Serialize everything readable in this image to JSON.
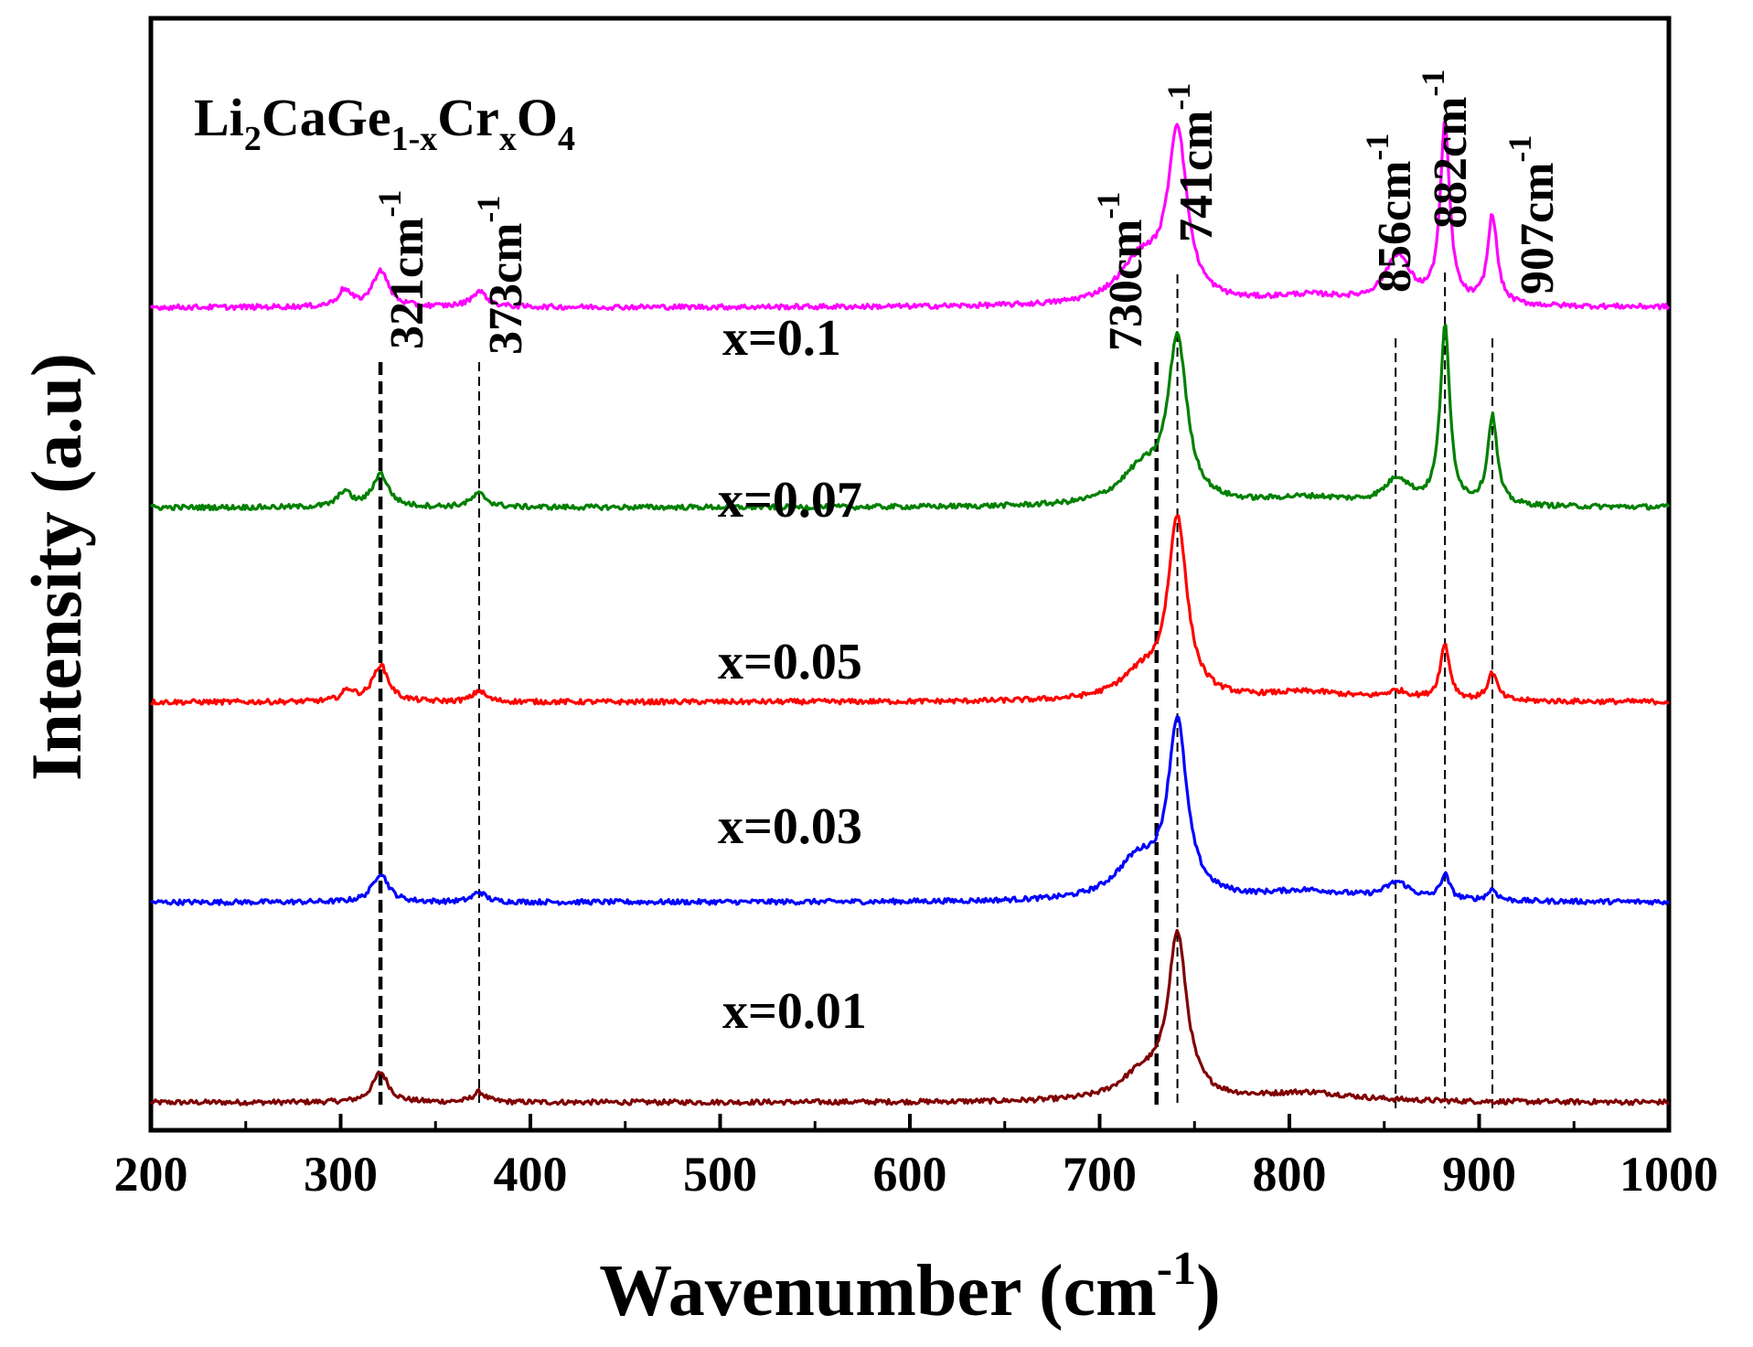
{
  "chart_data": {
    "type": "line",
    "title": "",
    "formula": {
      "base": "Li",
      "s1": "2",
      "mid": "CaGe",
      "s2": "1-x",
      "mid2": "Cr",
      "s3": "x",
      "end": "O",
      "s4": "4"
    },
    "xlabel": "Wavenumber (cm",
    "xlabel_sup": "-1",
    "xlabel_close": ")",
    "ylabel": "Intensity (a.u)",
    "xlim": [
      200,
      1000
    ],
    "ylim": [
      0,
      100
    ],
    "x_ticks": [
      "200",
      "300",
      "400",
      "500",
      "600",
      "700",
      "800",
      "900",
      "1000"
    ],
    "grid": false,
    "legend": "inline labels above each trace",
    "series": [
      {
        "name": "x=0.01",
        "color": "#800000",
        "offset": 2.5,
        "peaks": [
          [
            722,
            2.2,
            14
          ],
          [
            741,
            14.5,
            6
          ],
          [
            321,
            2.7,
            5
          ],
          [
            373,
            0.9,
            4
          ],
          [
            810,
            0.8,
            30
          ]
        ]
      },
      {
        "name": "x=0.03",
        "color": "#0000ff",
        "offset": 20.5,
        "peaks": [
          [
            720,
            3.5,
            14
          ],
          [
            741,
            15.5,
            6
          ],
          [
            321,
            2.6,
            5
          ],
          [
            373,
            0.9,
            4
          ],
          [
            810,
            0.9,
            30
          ],
          [
            857,
            1.5,
            8
          ],
          [
            882,
            2.2,
            3
          ],
          [
            907,
            1.0,
            3
          ]
        ]
      },
      {
        "name": "x=0.05",
        "color": "#ff0000",
        "offset": 38.5,
        "peaks": [
          [
            722,
            2.2,
            14
          ],
          [
            741,
            16.0,
            6
          ],
          [
            321,
            3.3,
            5
          ],
          [
            304,
            1.0,
            4
          ],
          [
            373,
            1.0,
            4
          ],
          [
            810,
            0.8,
            30
          ],
          [
            857,
            0.7,
            8
          ],
          [
            882,
            5.0,
            3
          ],
          [
            907,
            2.5,
            3
          ]
        ]
      },
      {
        "name": "x=0.07",
        "color": "#008000",
        "offset": 56.0,
        "peaks": [
          [
            722,
            3.0,
            14
          ],
          [
            741,
            14.5,
            6
          ],
          [
            321,
            3.0,
            5
          ],
          [
            302,
            1.4,
            4
          ],
          [
            373,
            1.2,
            5
          ],
          [
            810,
            0.8,
            30
          ],
          [
            857,
            2.3,
            8
          ],
          [
            882,
            16.0,
            3
          ],
          [
            907,
            8.0,
            3
          ]
        ]
      },
      {
        "name": "x=0.1",
        "color": "#ff00ff",
        "offset": 74.0,
        "peaks": [
          [
            722,
            4.0,
            14
          ],
          [
            741,
            15.0,
            6
          ],
          [
            321,
            3.3,
            5
          ],
          [
            302,
            1.5,
            4
          ],
          [
            373,
            1.4,
            5
          ],
          [
            810,
            0.9,
            30
          ],
          [
            857,
            4.3,
            8
          ],
          [
            882,
            16.0,
            3
          ],
          [
            907,
            8.0,
            3
          ]
        ]
      }
    ],
    "peak_markers": [
      {
        "x": 321,
        "label": "321cm",
        "sup": "-1",
        "dash": "bold"
      },
      {
        "x": 373,
        "label": "373cm",
        "sup": "-1",
        "dash": "thin"
      },
      {
        "x": 730,
        "label": "730cm",
        "sup": "-1",
        "dash": "bold"
      },
      {
        "x": 741,
        "label": "741cm",
        "sup": "-1",
        "dash": "thin"
      },
      {
        "x": 856,
        "label": "856cm",
        "sup": "-1",
        "dash": "thin"
      },
      {
        "x": 882,
        "label": "882cm",
        "sup": "-1",
        "dash": "thin"
      },
      {
        "x": 907,
        "label": "907cm",
        "sup": "-1",
        "dash": "thin"
      }
    ]
  }
}
